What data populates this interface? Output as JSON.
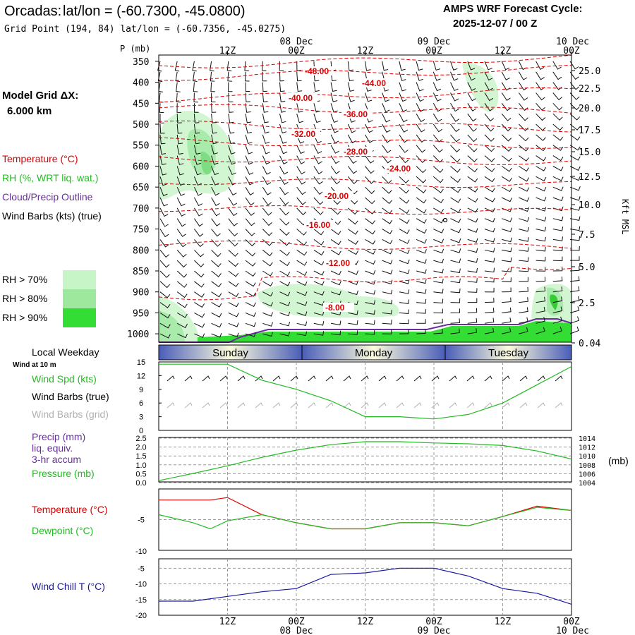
{
  "header": {
    "station": "Orcadas:",
    "latlon_label": "lat/lon = (-60.7300, -45.0800)",
    "grid_point": "Grid Point (194, 84) lat/lon = (-60.7356, -45.0275)",
    "model_name": "AMPS WRF Forecast Cycle:",
    "cycle": "2025-12-07 / 00  Z"
  },
  "model_grid": {
    "label": "Model Grid ΔX:",
    "value": "6.000 km"
  },
  "legend": {
    "temperature": "Temperature (°C)",
    "rh": "RH (%, WRT liq. wat.)",
    "cloud": "Cloud/Precip Outline",
    "wind": "Wind Barbs (kts) (true)",
    "rh_levels": [
      {
        "label": "RH > 70%",
        "color": "#c8f5c8"
      },
      {
        "label": "RH > 80%",
        "color": "#9ee89e"
      },
      {
        "label": "RH > 90%",
        "color": "#33dd33"
      }
    ]
  },
  "colors": {
    "temperature": "#dd0000",
    "rh_text": "#22bb22",
    "cloud": "#6a2ea0",
    "wind_chill": "#1a1aa0",
    "grid": "#9a9a9a"
  },
  "time_axis": {
    "top_dates": [
      "08 Dec",
      "09 Dec",
      "10 Dec"
    ],
    "ticks": [
      "12Z",
      "00Z",
      "12Z",
      "00Z",
      "12Z",
      "00Z"
    ],
    "bottom_dates": [
      "08 Dec",
      "09 Dec",
      "10 Dec"
    ]
  },
  "weekday": {
    "label": "Local Weekday",
    "days": [
      "Sunday",
      "Monday",
      "Tuesday"
    ]
  },
  "chart_data": [
    {
      "type": "contour",
      "name": "cross_section",
      "y_axis_label": "P (mb)",
      "right_axis_label": "Kft MSL",
      "pressure_ticks": [
        350,
        400,
        450,
        500,
        550,
        600,
        650,
        700,
        750,
        800,
        850,
        900,
        950,
        1000
      ],
      "height_ticks": [
        "25.0",
        "22.5",
        "20.0",
        "17.5",
        "15.0",
        "12.5",
        "10.0",
        "7.5",
        "5.0",
        "2.5",
        "0.04"
      ],
      "temperature_contours": [
        {
          "label": "-48.00",
          "value": -48
        },
        {
          "label": "-44.00",
          "value": -44
        },
        {
          "label": "-40.00",
          "value": -40
        },
        {
          "label": "-36.00",
          "value": -36
        },
        {
          "label": "-32.00",
          "value": -32
        },
        {
          "label": "-28.00",
          "value": -28
        },
        {
          "label": "-24.00",
          "value": -24
        },
        {
          "label": "-20.00",
          "value": -20
        },
        {
          "label": "-16.00",
          "value": -16
        },
        {
          "label": "-12.00",
          "value": -12
        },
        {
          "label": "-8.00",
          "value": -8
        }
      ]
    },
    {
      "type": "line",
      "name": "wind_speed",
      "subtitle": "Wind at 10 m",
      "legend": [
        "Wind Spd (kts)",
        "Wind Barbs (true)",
        "Wind Barbs (grid)"
      ],
      "y_ticks": [
        0,
        3,
        6,
        9,
        12,
        15
      ],
      "ylim": [
        0,
        15
      ],
      "x_hours": [
        0,
        12,
        18,
        24,
        30,
        36,
        42,
        48,
        54,
        60,
        66,
        72
      ],
      "values": [
        14.5,
        14.5,
        11,
        9,
        6.5,
        3,
        3,
        2.5,
        3.5,
        6,
        10,
        14
      ]
    },
    {
      "type": "line",
      "name": "precip_pressure",
      "legend": [
        "Precip (mm)",
        "liq. equiv.",
        "3-hr accum",
        "Pressure (mb)"
      ],
      "y_ticks": [
        "0.0",
        "0.5",
        "1.0",
        "1.5",
        "2.0",
        "2.5"
      ],
      "y2_ticks": [
        "1004",
        "1006",
        "1008",
        "1010",
        "1012",
        "1014"
      ],
      "y2_label": "(mb)",
      "ylim": [
        1004,
        1014.5
      ],
      "x_hours": [
        0,
        6,
        12,
        18,
        24,
        30,
        36,
        42,
        48,
        54,
        60,
        66,
        72
      ],
      "pressure": [
        1004.3,
        1006,
        1007.8,
        1009.8,
        1011.5,
        1012.8,
        1013.5,
        1013.5,
        1013.2,
        1013,
        1012.6,
        1011.3,
        1009.4
      ]
    },
    {
      "type": "line",
      "name": "temperature_dewpoint",
      "legend": [
        "Temperature (°C)",
        "Dewpoint (°C)"
      ],
      "y_ticks": [
        "-5",
        "-10"
      ],
      "ylim": [
        -10,
        0
      ],
      "x_hours": [
        0,
        6,
        9,
        12,
        18,
        24,
        30,
        36,
        42,
        48,
        54,
        60,
        66,
        72
      ],
      "temperature": [
        -1.8,
        -1.8,
        -1.8,
        -1.4,
        -4.2,
        -5.5,
        -6.5,
        -6.5,
        -5.5,
        -5.5,
        -6,
        -4.5,
        -2.8,
        -3.5
      ],
      "dewpoint": [
        -4.2,
        -5.5,
        -6.5,
        -5.2,
        -4.2,
        -5.5,
        -6.5,
        -6.5,
        -5.5,
        -5.5,
        -6,
        -4.5,
        -3,
        -3.5
      ]
    },
    {
      "type": "line",
      "name": "wind_chill",
      "legend": [
        "Wind Chill T (°C)"
      ],
      "y_ticks": [
        -5,
        -10,
        -15,
        -20
      ],
      "ylim": [
        -20,
        -2
      ],
      "x_hours": [
        0,
        6,
        12,
        18,
        24,
        30,
        36,
        42,
        48,
        54,
        60,
        66,
        72
      ],
      "values": [
        -15.5,
        -15.5,
        -14,
        -12.5,
        -11.5,
        -7,
        -6.5,
        -5,
        -5,
        -7.5,
        -11.5,
        -13,
        -16.5
      ]
    }
  ]
}
